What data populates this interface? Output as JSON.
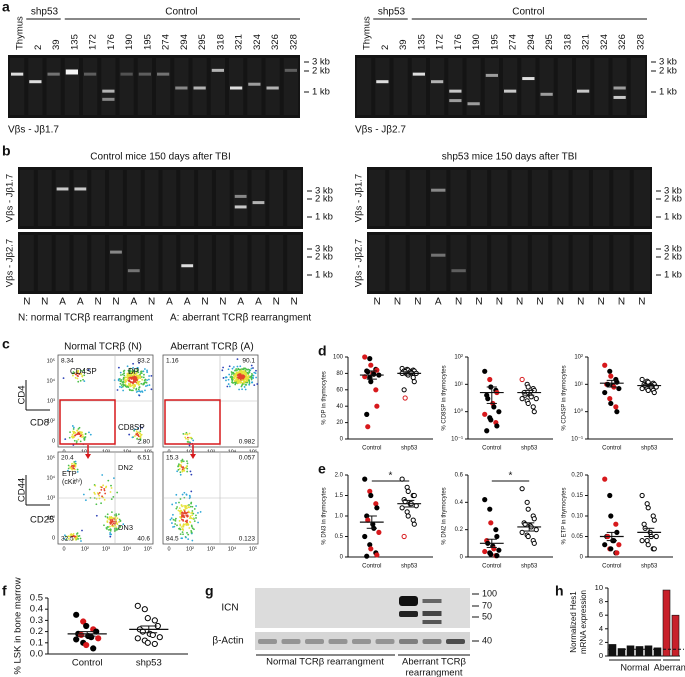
{
  "figure": {
    "letters": [
      "a",
      "b",
      "c",
      "d",
      "e",
      "f",
      "g",
      "h"
    ],
    "a": {
      "lanes": [
        "Thymus",
        "2",
        "39",
        "135",
        "172",
        "176",
        "190",
        "195",
        "274",
        "294",
        "295",
        "318",
        "321",
        "324",
        "326",
        "328"
      ],
      "group_shp53": "shp53",
      "group_control": "Control",
      "sizes": [
        "3 kb",
        "2 kb",
        "1 kb"
      ],
      "captions": [
        "Vβs - Jβ1.7",
        "Vβs - Jβ2.7"
      ]
    },
    "b": {
      "titles": [
        "Control mice 150 days after TBI",
        "shp53 mice 150 days after TBI"
      ],
      "rows": [
        "Vβs - Jβ1.7",
        "Vβs - Jβ2.7"
      ],
      "sizes": [
        "3 kb",
        "2 kb",
        "1 kb"
      ],
      "control_calls": [
        "N",
        "N",
        "A",
        "A",
        "N",
        "N",
        "A",
        "N",
        "A",
        "A",
        "N",
        "N",
        "A",
        "A",
        "N",
        "N"
      ],
      "shp53_calls": [
        "N",
        "N",
        "N",
        "A",
        "N",
        "N",
        "N",
        "N",
        "N",
        "N",
        "N",
        "N",
        "N",
        "N"
      ],
      "legend": [
        "N: normal TCRβ rearrangment",
        "A: aberrant TCRβ rearrangment"
      ]
    },
    "c": {
      "headers": [
        "Normal TCRβ (N)",
        "Aberrant TCRβ (A)"
      ],
      "axes": [
        "CD4",
        "CD8",
        "CD44",
        "CD25"
      ],
      "gates": [
        "CD4SP",
        "DP",
        "CD8SP",
        "ETP",
        "(cKitʰⁱ)",
        "DN2",
        "DN3"
      ],
      "quadrants": [
        [
          "8.34",
          "83.2",
          "2.80"
        ],
        [
          "1.16",
          "90.1",
          "0.982"
        ],
        [
          "20.4",
          "6.51",
          "40.6",
          "32.5"
        ],
        [
          "15.3",
          "0.057",
          "0.123",
          "84.5"
        ]
      ],
      "ticks": [
        "0",
        "10²",
        "10³",
        "10⁴",
        "10⁵"
      ]
    },
    "g": {
      "bands": [
        "ICN",
        "β-Actin"
      ],
      "markers": [
        "100",
        "70",
        "50",
        "40"
      ],
      "normal_label": "Normal TCRβ rearrangment",
      "aberrant_label": [
        "Aberrant TCRβ",
        "rearrangment"
      ]
    }
  },
  "chart_data": [
    {
      "type": "strip",
      "ylabel": "% DP in thymocytes",
      "categories": [
        "Control",
        "shp53"
      ],
      "ylim": [
        0,
        100
      ],
      "yticks": [
        0,
        20,
        40,
        60,
        80,
        100
      ],
      "log": false,
      "groups": [
        {
          "values": [
            100,
            98,
            90,
            85,
            84,
            83,
            82,
            80,
            79,
            78,
            76,
            75,
            70,
            60,
            40,
            30,
            15
          ],
          "colors": [
            "#d7191c",
            "#000",
            "#d7191c",
            "#000",
            "#d7191c",
            "#000",
            "#000",
            "#d7191c",
            "#000",
            "#000",
            "#d7191c",
            "#000",
            "#000",
            "#d7191c",
            "#d7191c",
            "#000",
            "#d7191c"
          ],
          "filled": true,
          "mean": 78,
          "sem": 5
        },
        {
          "values": [
            86,
            85,
            84,
            84,
            83,
            83,
            82,
            82,
            81,
            80,
            80,
            79,
            78,
            75,
            70,
            60,
            50
          ],
          "colors": [
            "#000",
            "#000",
            "#000",
            "#000",
            "#000",
            "#000",
            "#000",
            "#000",
            "#000",
            "#000",
            "#000",
            "#000",
            "#000",
            "#000",
            "#000",
            "#000",
            "#d7191c"
          ],
          "filled": false,
          "mean": 80,
          "sem": 2
        }
      ]
    },
    {
      "type": "strip",
      "ylabel": "% CD8SP in thymocytes",
      "categories": [
        "Control",
        "shp53"
      ],
      "ylim": [
        0.1,
        100
      ],
      "yticks": [
        {
          "value": 0.1,
          "label": "10⁻¹"
        },
        {
          "value": 1,
          "label": "10⁰"
        },
        {
          "value": 10,
          "label": "10¹"
        },
        {
          "value": 100,
          "label": "10²"
        }
      ],
      "log": true,
      "groups": [
        {
          "values": [
            30,
            15,
            8,
            6,
            5,
            4,
            3,
            2,
            1.5,
            1,
            0.8,
            0.6,
            0.5,
            0.4,
            0.3,
            0.2
          ],
          "colors": [
            "#000",
            "#d7191c",
            "#000",
            "#000",
            "#d7191c",
            "#000",
            "#000",
            "#d7191c",
            "#000",
            "#000",
            "#d7191c",
            "#000",
            "#000",
            "#d7191c",
            "#000",
            "#000"
          ],
          "filled": true,
          "mean": 5,
          "sem": 3
        },
        {
          "values": [
            15,
            10,
            8,
            7,
            6,
            5,
            4,
            4,
            3.5,
            3,
            3,
            2.5,
            2,
            1.5,
            1
          ],
          "colors": [
            "#d7191c",
            "#000",
            "#000",
            "#000",
            "#000",
            "#000",
            "#000",
            "#000",
            "#000",
            "#000",
            "#000",
            "#000",
            "#000",
            "#000",
            "#000"
          ],
          "filled": false,
          "mean": 5,
          "sem": 1
        }
      ]
    },
    {
      "type": "strip",
      "ylabel": "% CD4SP in thymocytes",
      "categories": [
        "Control",
        "shp53"
      ],
      "ylim": [
        0.1,
        100
      ],
      "yticks": [
        {
          "value": 0.1,
          "label": "10⁻¹"
        },
        {
          "value": 1,
          "label": "10⁰"
        },
        {
          "value": 10,
          "label": "10¹"
        },
        {
          "value": 100,
          "label": "10²"
        }
      ],
      "log": true,
      "groups": [
        {
          "values": [
            50,
            30,
            20,
            15,
            12,
            10,
            10,
            9,
            8,
            7,
            5,
            3,
            2,
            1.5,
            1
          ],
          "colors": [
            "#d7191c",
            "#000",
            "#d7191c",
            "#000",
            "#000",
            "#d7191c",
            "#000",
            "#000",
            "#d7191c",
            "#000",
            "#000",
            "#d7191c",
            "#000",
            "#d7191c",
            "#000"
          ],
          "filled": true,
          "mean": 11,
          "sem": 3
        },
        {
          "values": [
            15,
            13,
            12,
            11,
            10,
            10,
            9,
            9,
            8,
            8,
            7,
            7,
            6,
            6,
            5
          ],
          "colors": [
            "#000",
            "#000",
            "#000",
            "#000",
            "#000",
            "#000",
            "#000",
            "#000",
            "#000",
            "#000",
            "#000",
            "#000",
            "#000",
            "#000",
            "#000"
          ],
          "filled": false,
          "mean": 9,
          "sem": 1
        }
      ]
    },
    {
      "type": "strip",
      "ylabel": "% DN3 in thymocytes",
      "categories": [
        "Control",
        "shp53"
      ],
      "ylim": [
        0,
        2
      ],
      "yticks": [
        0,
        0.5,
        {
          "value": 1,
          "label": "1.0"
        },
        1.5,
        {
          "value": 2,
          "label": "2.0"
        }
      ],
      "log": false,
      "annotation": "*",
      "groups": [
        {
          "values": [
            1.9,
            1.6,
            1.5,
            1.3,
            1.2,
            1.0,
            0.9,
            0.8,
            0.7,
            0.6,
            0.5,
            0.3,
            0.2,
            0.1,
            0.05,
            0.02
          ],
          "colors": [
            "#000",
            "#d7191c",
            "#000",
            "#d7191c",
            "#000",
            "#000",
            "#d7191c",
            "#000",
            "#000",
            "#d7191c",
            "#000",
            "#000",
            "#d7191c",
            "#000",
            "#d7191c",
            "#000"
          ],
          "filled": true,
          "mean": 0.85,
          "sem": 0.15
        },
        {
          "values": [
            1.9,
            1.7,
            1.6,
            1.5,
            1.5,
            1.4,
            1.35,
            1.3,
            1.3,
            1.25,
            1.2,
            1.1,
            1.0,
            0.9,
            0.8,
            0.5
          ],
          "colors": [
            "#000",
            "#000",
            "#000",
            "#000",
            "#000",
            "#000",
            "#000",
            "#000",
            "#000",
            "#000",
            "#000",
            "#000",
            "#000",
            "#000",
            "#000",
            "#d7191c"
          ],
          "filled": false,
          "mean": 1.3,
          "sem": 0.08
        }
      ]
    },
    {
      "type": "strip",
      "ylabel": "% DN2 in thymocytes",
      "categories": [
        "Control",
        "shp53"
      ],
      "ylim": [
        0,
        0.6
      ],
      "yticks": [
        0,
        0.2,
        0.4,
        0.6
      ],
      "log": false,
      "annotation": "*",
      "groups": [
        {
          "values": [
            0.42,
            0.35,
            0.25,
            0.2,
            0.15,
            0.12,
            0.1,
            0.08,
            0.06,
            0.05,
            0.04,
            0.03,
            0.02,
            0.01,
            0.01
          ],
          "colors": [
            "#000",
            "#000",
            "#d7191c",
            "#000",
            "#000",
            "#d7191c",
            "#000",
            "#000",
            "#d7191c",
            "#000",
            "#d7191c",
            "#000",
            "#000",
            "#d7191c",
            "#000"
          ],
          "filled": true,
          "mean": 0.1,
          "sem": 0.03
        },
        {
          "values": [
            0.5,
            0.4,
            0.35,
            0.3,
            0.28,
            0.25,
            0.24,
            0.23,
            0.22,
            0.2,
            0.18,
            0.16,
            0.15,
            0.12,
            0.1
          ],
          "colors": [
            "#000",
            "#000",
            "#000",
            "#000",
            "#000",
            "#000",
            "#000",
            "#000",
            "#000",
            "#000",
            "#000",
            "#000",
            "#000",
            "#000",
            "#000"
          ],
          "filled": false,
          "mean": 0.22,
          "sem": 0.03
        }
      ]
    },
    {
      "type": "strip",
      "ylabel": "% ETP in thymocytes",
      "categories": [
        "Control",
        "shp53"
      ],
      "ylim": [
        0,
        0.2
      ],
      "yticks": [
        0,
        0.05,
        {
          "value": 0.1,
          "label": "0.10"
        },
        0.15,
        {
          "value": 0.2,
          "label": "0.20"
        }
      ],
      "log": false,
      "groups": [
        {
          "values": [
            0.19,
            0.15,
            0.1,
            0.08,
            0.06,
            0.05,
            0.05,
            0.04,
            0.04,
            0.03,
            0.03,
            0.02,
            0.02,
            0.01,
            0.01
          ],
          "colors": [
            "#d7191c",
            "#000",
            "#000",
            "#d7191c",
            "#000",
            "#000",
            "#d7191c",
            "#000",
            "#000",
            "#d7191c",
            "#000",
            "#d7191c",
            "#000",
            "#000",
            "#d7191c"
          ],
          "filled": true,
          "mean": 0.05,
          "sem": 0.01
        },
        {
          "values": [
            0.15,
            0.13,
            0.12,
            0.1,
            0.09,
            0.08,
            0.07,
            0.06,
            0.05,
            0.05,
            0.04,
            0.04,
            0.03,
            0.02,
            0.02
          ],
          "colors": [
            "#000",
            "#000",
            "#000",
            "#000",
            "#000",
            "#000",
            "#000",
            "#000",
            "#000",
            "#000",
            "#000",
            "#000",
            "#000",
            "#000",
            "#000"
          ],
          "filled": false,
          "mean": 0.06,
          "sem": 0.01
        }
      ]
    },
    {
      "type": "strip",
      "ylabel": "% LSK in bone marrow",
      "categories": [
        "Control",
        "shp53"
      ],
      "ylim": [
        0,
        0.5
      ],
      "yticks": [
        {
          "value": 0,
          "label": "0.0"
        },
        0.1,
        0.2,
        0.3,
        0.4,
        0.5
      ],
      "log": false,
      "groups": [
        {
          "values": [
            0.35,
            0.29,
            0.25,
            0.22,
            0.2,
            0.18,
            0.17,
            0.16,
            0.15,
            0.14,
            0.13,
            0.1,
            0.08,
            0.05
          ],
          "colors": [
            "#000",
            "#d7191c",
            "#000",
            "#d7191c",
            "#000",
            "#000",
            "#d7191c",
            "#000",
            "#000",
            "#d7191c",
            "#000",
            "#000",
            "#d7191c",
            "#000"
          ],
          "filled": true,
          "mean": 0.18,
          "sem": 0.02
        },
        {
          "values": [
            0.43,
            0.4,
            0.32,
            0.3,
            0.25,
            0.22,
            0.2,
            0.18,
            0.17,
            0.15,
            0.14,
            0.12,
            0.1,
            0.09
          ],
          "colors": [
            "#000",
            "#000",
            "#000",
            "#000",
            "#000",
            "#000",
            "#000",
            "#000",
            "#000",
            "#000",
            "#000",
            "#000",
            "#000",
            "#000"
          ],
          "filled": false,
          "mean": 0.22,
          "sem": 0.03
        }
      ]
    },
    {
      "type": "bar",
      "ylabel": [
        "Normalized Hes1",
        "mRNA expression"
      ],
      "categories": [
        null,
        null,
        null,
        null,
        null,
        null,
        null,
        null
      ],
      "values": [
        1.7,
        1.1,
        1.5,
        1.4,
        1.5,
        1.2,
        9.7,
        6.0
      ],
      "colors": [
        "#111",
        "#111",
        "#111",
        "#111",
        "#111",
        "#111",
        "#c8202a",
        "#c8202a"
      ],
      "ylim": [
        0,
        10
      ],
      "yticks": [
        0,
        2,
        4,
        6,
        8,
        10
      ],
      "reference": 1,
      "group_labels": [
        "Normal",
        "Aberrant"
      ]
    }
  ]
}
